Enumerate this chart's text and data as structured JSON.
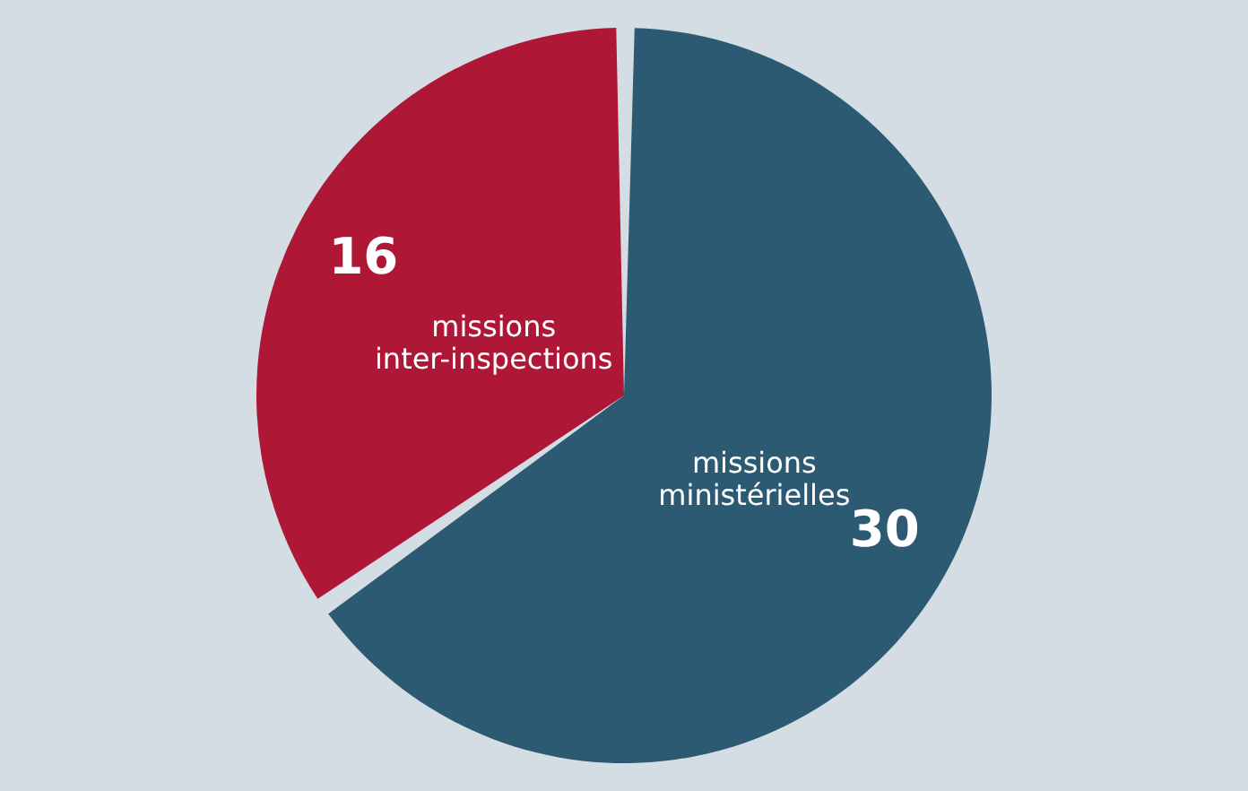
{
  "chart_data": {
    "type": "pie",
    "categories": [
      "missions inter-inspections",
      "missions ministérielles"
    ],
    "values": [
      16,
      30
    ],
    "colors": [
      "#ae1736",
      "#2d5a73"
    ],
    "data_labels": true,
    "legend": false
  }
}
